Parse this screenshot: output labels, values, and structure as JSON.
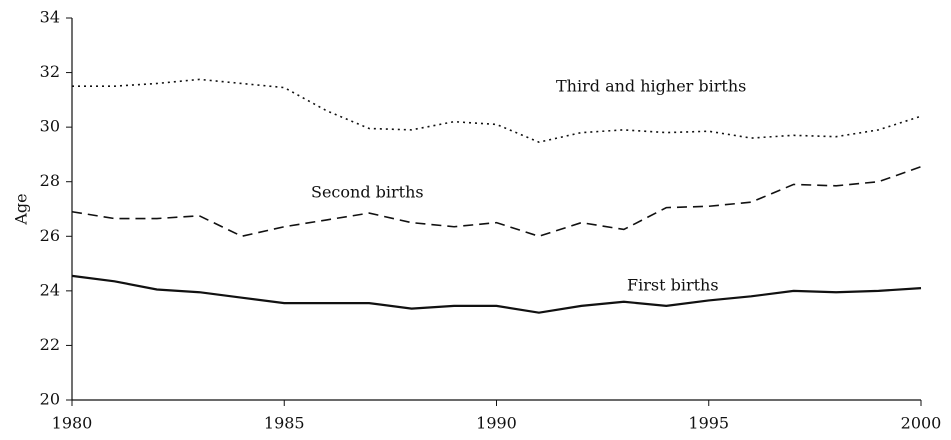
{
  "chart_data": {
    "type": "line",
    "y_label": "Age",
    "x": [
      1980,
      1981,
      1982,
      1983,
      1984,
      1985,
      1986,
      1987,
      1988,
      1989,
      1990,
      1991,
      1992,
      1993,
      1994,
      1995,
      1996,
      1997,
      1998,
      1999,
      2000
    ],
    "xlim": [
      1980,
      2000
    ],
    "xticks": [
      1980,
      1985,
      1990,
      1995,
      2000
    ],
    "ylim": [
      20,
      34
    ],
    "yticks": [
      20,
      22,
      24,
      26,
      28,
      30,
      32,
      34
    ],
    "grid": false,
    "series": [
      {
        "name": "First births",
        "color": "#111111",
        "style": "solid",
        "values": [
          24.55,
          24.35,
          24.05,
          23.95,
          23.75,
          23.55,
          23.55,
          23.55,
          23.35,
          23.45,
          23.45,
          23.2,
          23.45,
          23.6,
          23.45,
          23.65,
          23.8,
          24.0,
          23.95,
          24.0,
          24.1
        ]
      },
      {
        "name": "Second births",
        "color": "#111111",
        "style": "dashed",
        "values": [
          26.9,
          26.65,
          26.65,
          26.75,
          26.0,
          26.35,
          26.6,
          26.85,
          26.5,
          26.35,
          26.5,
          26.0,
          26.5,
          26.25,
          27.05,
          27.1,
          27.25,
          27.9,
          27.85,
          28.0,
          28.55
        ]
      },
      {
        "name": "Third and higher births",
        "color": "#111111",
        "style": "dotted",
        "values": [
          31.5,
          31.5,
          31.6,
          31.75,
          31.6,
          31.45,
          30.6,
          29.95,
          29.9,
          30.2,
          30.1,
          29.45,
          29.8,
          29.9,
          29.8,
          29.85,
          29.6,
          29.7,
          29.65,
          29.9,
          30.4
        ]
      }
    ]
  }
}
